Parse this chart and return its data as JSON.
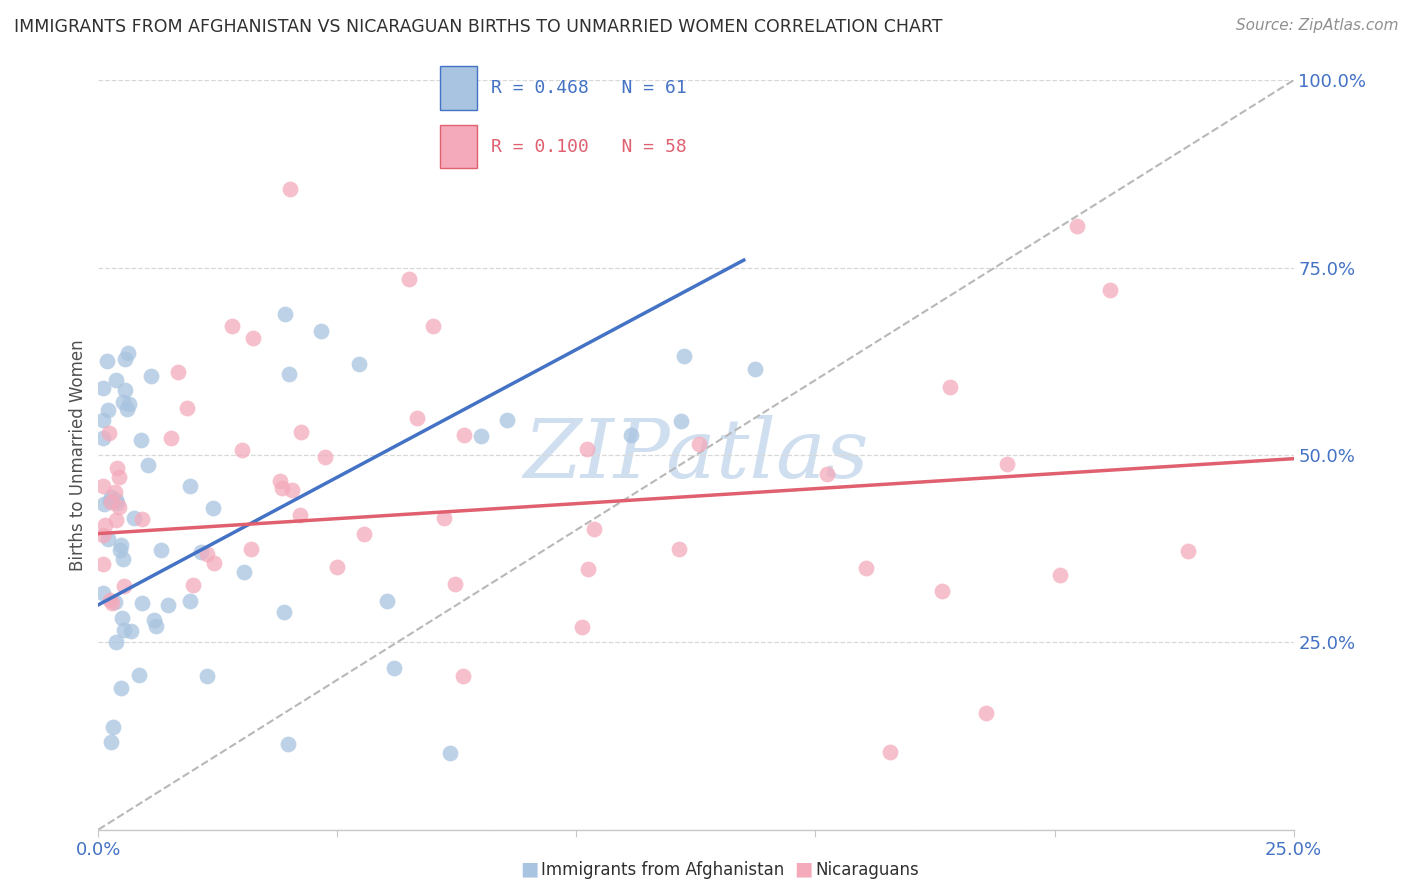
{
  "title": "IMMIGRANTS FROM AFGHANISTAN VS NICARAGUAN BIRTHS TO UNMARRIED WOMEN CORRELATION CHART",
  "source": "Source: ZipAtlas.com",
  "ylabel": "Births to Unmarried Women",
  "blue_R": 0.468,
  "blue_N": 61,
  "pink_R": 0.1,
  "pink_N": 58,
  "blue_scatter_color": "#a8c4e0",
  "pink_scatter_color": "#f4aabb",
  "blue_line_color": "#4472c4",
  "pink_line_color": "#e06070",
  "title_color": "#303030",
  "source_color": "#909090",
  "ylabel_color": "#505050",
  "tick_label_color": "#4472c4",
  "watermark_text_color": "#d0dff0",
  "grid_color": "#d8d8d8",
  "ref_line_color": "#b8b8b8",
  "blue_line_x": [
    0.0,
    0.135
  ],
  "blue_line_y": [
    0.3,
    0.76
  ],
  "pink_line_x": [
    0.0,
    0.25
  ],
  "pink_line_y": [
    0.395,
    0.495
  ],
  "ref_line_x": [
    0.0,
    0.25
  ],
  "ref_line_y": [
    0.0,
    1.0
  ],
  "xlim": [
    0.0,
    0.25
  ],
  "ylim": [
    0.0,
    1.0
  ],
  "x_ticks": [
    0.0,
    0.05,
    0.1,
    0.15,
    0.2,
    0.25
  ],
  "y_ticks": [
    0.0,
    0.25,
    0.5,
    0.75,
    1.0
  ],
  "x_tick_labels": [
    "0.0%",
    "",
    "",
    "",
    "",
    "25.0%"
  ],
  "y_tick_labels": [
    "",
    "25.0%",
    "50.0%",
    "75.0%",
    "100.0%"
  ]
}
